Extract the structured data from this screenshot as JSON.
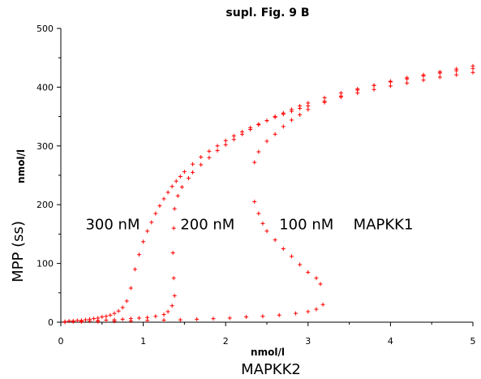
{
  "chart_data": {
    "type": "scatter",
    "title": "supl. Fig. 9 B",
    "xlabel": "MAPKK2",
    "xunit": "nmol/l",
    "ylabel": "MPP (ss)",
    "yunit": "nmol/l",
    "xlim": [
      0,
      5
    ],
    "ylim": [
      0,
      500
    ],
    "xticks": [
      0,
      1,
      2,
      3,
      4,
      5
    ],
    "yticks": [
      0,
      100,
      200,
      300,
      400,
      500
    ],
    "grid": false,
    "marker": "+",
    "color": "#ff0000",
    "annotations": [
      {
        "text": "300 nM",
        "x": 0.3,
        "y": 158
      },
      {
        "text": "200 nM",
        "x": 1.45,
        "y": 158
      },
      {
        "text": "100 nM",
        "x": 2.65,
        "y": 158
      },
      {
        "text": "MAPKK1",
        "x": 3.55,
        "y": 158
      }
    ],
    "series": [
      {
        "points": [
          [
            0.05,
            1
          ],
          [
            0.1,
            2
          ],
          [
            0.15,
            2
          ],
          [
            0.2,
            3
          ],
          [
            0.25,
            3
          ],
          [
            0.3,
            4
          ],
          [
            0.35,
            5
          ],
          [
            0.4,
            6
          ],
          [
            0.45,
            7
          ],
          [
            0.5,
            9
          ],
          [
            0.55,
            10
          ],
          [
            0.6,
            12
          ],
          [
            0.65,
            15
          ],
          [
            0.7,
            19
          ],
          [
            0.75,
            25
          ],
          [
            0.8,
            36
          ],
          [
            0.85,
            58
          ],
          [
            0.9,
            90
          ],
          [
            0.95,
            115
          ],
          [
            1.0,
            137
          ],
          [
            1.05,
            155
          ],
          [
            1.1,
            170
          ],
          [
            1.15,
            185
          ],
          [
            1.2,
            198
          ],
          [
            1.25,
            210
          ],
          [
            1.3,
            221
          ],
          [
            1.35,
            231
          ],
          [
            1.4,
            240
          ],
          [
            1.45,
            248
          ],
          [
            1.5,
            256
          ],
          [
            1.6,
            269
          ],
          [
            1.7,
            281
          ],
          [
            1.8,
            291
          ],
          [
            1.9,
            300
          ],
          [
            2.0,
            309
          ],
          [
            2.1,
            317
          ],
          [
            2.2,
            324
          ],
          [
            2.3,
            331
          ],
          [
            2.4,
            337
          ],
          [
            2.5,
            343
          ],
          [
            2.6,
            349
          ],
          [
            2.7,
            354
          ],
          [
            2.8,
            359
          ],
          [
            2.9,
            364
          ],
          [
            3.0,
            368
          ],
          [
            3.2,
            376
          ],
          [
            3.4,
            383
          ],
          [
            3.6,
            390
          ],
          [
            3.8,
            396
          ],
          [
            4.0,
            402
          ],
          [
            4.2,
            407
          ],
          [
            4.4,
            412
          ],
          [
            4.6,
            417
          ],
          [
            4.8,
            421
          ],
          [
            5.0,
            425
          ]
        ]
      },
      {
        "points": [
          [
            0.05,
            0.5
          ],
          [
            0.15,
            1
          ],
          [
            0.25,
            1.5
          ],
          [
            0.35,
            2
          ],
          [
            0.45,
            3
          ],
          [
            0.55,
            3.5
          ],
          [
            0.65,
            4
          ],
          [
            0.75,
            5
          ],
          [
            0.85,
            6
          ],
          [
            0.95,
            7
          ],
          [
            1.05,
            8
          ],
          [
            1.15,
            10
          ],
          [
            1.25,
            13
          ],
          [
            1.3,
            18
          ],
          [
            1.35,
            28
          ],
          [
            1.38,
            45
          ],
          [
            1.37,
            75
          ],
          [
            1.36,
            118
          ],
          [
            1.37,
            160
          ],
          [
            1.38,
            193
          ],
          [
            1.42,
            215
          ],
          [
            1.47,
            230
          ],
          [
            1.55,
            245
          ],
          [
            1.6,
            255
          ],
          [
            1.7,
            268
          ],
          [
            1.8,
            280
          ],
          [
            1.9,
            292
          ],
          [
            2.0,
            302
          ],
          [
            2.1,
            311
          ],
          [
            2.2,
            320
          ],
          [
            2.3,
            328
          ],
          [
            2.4,
            336
          ],
          [
            2.5,
            343
          ],
          [
            2.6,
            350
          ],
          [
            2.7,
            356
          ],
          [
            2.8,
            362
          ],
          [
            2.9,
            368
          ],
          [
            3.0,
            373
          ],
          [
            3.2,
            382
          ],
          [
            3.4,
            390
          ],
          [
            3.6,
            397
          ],
          [
            3.8,
            403
          ],
          [
            4.0,
            409
          ],
          [
            4.2,
            414
          ],
          [
            4.4,
            419
          ],
          [
            4.6,
            424
          ],
          [
            4.8,
            428
          ],
          [
            5.0,
            432
          ]
        ]
      },
      {
        "points": [
          [
            0.05,
            0.3
          ],
          [
            0.25,
            0.6
          ],
          [
            0.45,
            1
          ],
          [
            0.65,
            1.5
          ],
          [
            0.85,
            2
          ],
          [
            1.05,
            3
          ],
          [
            1.25,
            3.5
          ],
          [
            1.45,
            4
          ],
          [
            1.65,
            5
          ],
          [
            1.85,
            6
          ],
          [
            2.05,
            7
          ],
          [
            2.25,
            9
          ],
          [
            2.45,
            10
          ],
          [
            2.65,
            12
          ],
          [
            2.85,
            15
          ],
          [
            3.0,
            18
          ],
          [
            3.1,
            22
          ],
          [
            3.18,
            30
          ],
          [
            3.15,
            65
          ],
          [
            3.1,
            75
          ],
          [
            3.0,
            85
          ],
          [
            2.9,
            98
          ],
          [
            2.8,
            112
          ],
          [
            2.7,
            125
          ],
          [
            2.6,
            140
          ],
          [
            2.5,
            155
          ],
          [
            2.45,
            168
          ],
          [
            2.4,
            185
          ],
          [
            2.35,
            205
          ],
          [
            2.35,
            272
          ],
          [
            2.4,
            290
          ],
          [
            2.5,
            308
          ],
          [
            2.6,
            320
          ],
          [
            2.7,
            333
          ],
          [
            2.8,
            344
          ],
          [
            2.9,
            353
          ],
          [
            3.0,
            362
          ],
          [
            3.2,
            374
          ],
          [
            3.4,
            385
          ],
          [
            3.6,
            395
          ],
          [
            3.8,
            403
          ],
          [
            4.0,
            410
          ],
          [
            4.2,
            416
          ],
          [
            4.4,
            421
          ],
          [
            4.6,
            426
          ],
          [
            4.8,
            431
          ],
          [
            5.0,
            436
          ]
        ]
      }
    ]
  }
}
